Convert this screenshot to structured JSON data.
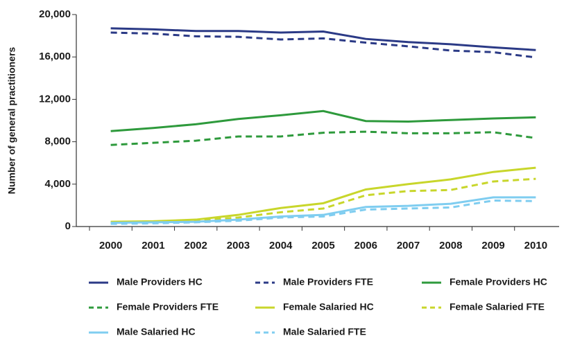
{
  "chart_data": {
    "type": "line",
    "y_label": "Number of general practitioners",
    "categories": [
      "2000",
      "2001",
      "2002",
      "2003",
      "2004",
      "2005",
      "2006",
      "2007",
      "2008",
      "2009",
      "2010"
    ],
    "ylim": [
      0,
      20000
    ],
    "yticks": [
      0,
      {
        "value": 4000,
        "label": "4,000"
      },
      {
        "value": 8000,
        "label": "8,000"
      },
      {
        "value": 12000,
        "label": "12,000"
      },
      {
        "value": 16000,
        "label": "16,000"
      },
      {
        "value": 20000,
        "label": "20,000"
      }
    ],
    "grid": false,
    "series": [
      {
        "name": "Male Providers HC",
        "color": "#2b3a86",
        "dashed": false,
        "values": [
          18700,
          18600,
          18450,
          18450,
          18300,
          18400,
          17700,
          17400,
          17200,
          16900,
          16650
        ]
      },
      {
        "name": "Male Providers FTE",
        "color": "#2b3a86",
        "dashed": true,
        "values": [
          18300,
          18200,
          17950,
          17900,
          17650,
          17750,
          17350,
          17000,
          16600,
          16450,
          15950
        ]
      },
      {
        "name": "Female Providers HC",
        "color": "#2e9a3c",
        "dashed": false,
        "values": [
          9000,
          9300,
          9650,
          10150,
          10500,
          10900,
          9950,
          9900,
          10050,
          10200,
          10300
        ]
      },
      {
        "name": "Female Providers FTE",
        "color": "#2e9a3c",
        "dashed": true,
        "values": [
          7700,
          7900,
          8100,
          8500,
          8500,
          8850,
          8950,
          8800,
          8800,
          8900,
          8350
        ]
      },
      {
        "name": "Female Salaried HC",
        "color": "#c8d62b",
        "dashed": false,
        "values": [
          450,
          500,
          650,
          1100,
          1750,
          2200,
          3500,
          4000,
          4450,
          5150,
          5550
        ]
      },
      {
        "name": "Female Salaried FTE",
        "color": "#c8d62b",
        "dashed": true,
        "values": [
          400,
          450,
          550,
          850,
          1350,
          1700,
          2950,
          3350,
          3450,
          4250,
          4500
        ]
      },
      {
        "name": "Male Salaried HC",
        "color": "#7fcdf0",
        "dashed": false,
        "values": [
          350,
          400,
          450,
          650,
          950,
          1100,
          1850,
          1950,
          2150,
          2750,
          2750
        ]
      },
      {
        "name": "Male Salaried FTE",
        "color": "#7fcdf0",
        "dashed": true,
        "values": [
          250,
          300,
          400,
          550,
          850,
          950,
          1600,
          1700,
          1800,
          2450,
          2400
        ]
      }
    ]
  }
}
